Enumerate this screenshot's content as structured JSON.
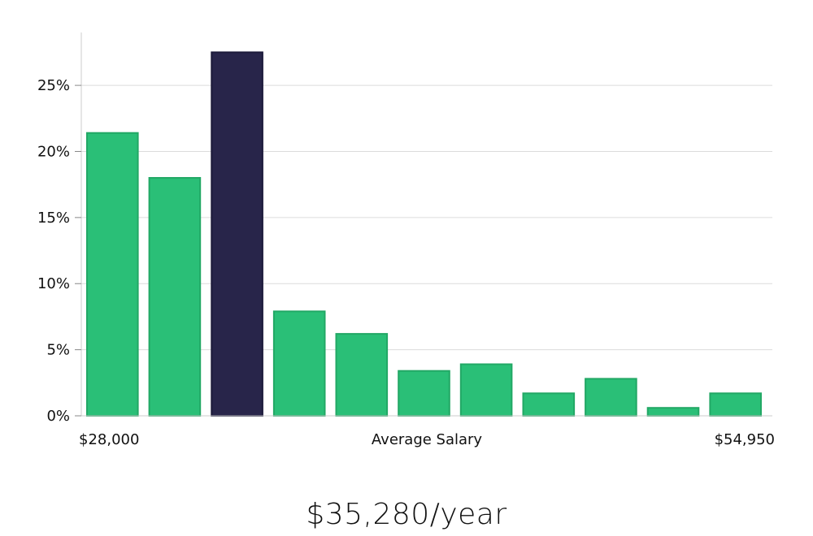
{
  "chart_data": {
    "type": "bar",
    "values": [
      21.4,
      18.0,
      27.5,
      7.9,
      6.2,
      3.4,
      3.9,
      1.7,
      2.8,
      0.6,
      1.7
    ],
    "highlight_index": 2,
    "ylim": [
      0,
      29
    ],
    "yticks": [
      0,
      5,
      10,
      15,
      20,
      25
    ],
    "y_tick_labels": [
      "0%",
      "5%",
      "10%",
      "15%",
      "20%",
      "25%"
    ],
    "x_min_label": "$28,000",
    "xlabel": "Average Salary",
    "x_max_label": "$54,950",
    "grid": true,
    "colors": {
      "bar": "#2abf77",
      "bar_edge": "#22a865",
      "highlight": "#28254a",
      "highlight_edge": "#1c1a3a",
      "grid": "#dcdcdc",
      "axis": "#cccccc"
    }
  },
  "summary": {
    "salary_text": "$35,280/year"
  }
}
